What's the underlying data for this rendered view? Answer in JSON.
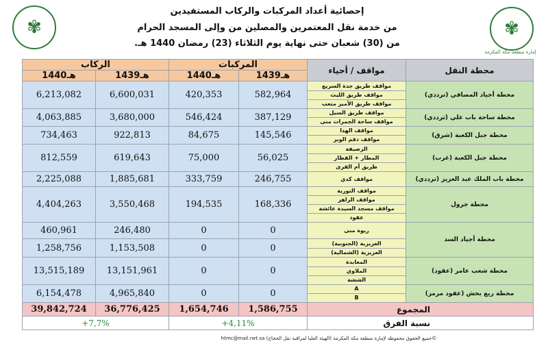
{
  "header": {
    "title_line1": "إحصائية أعداد المركبات والركاب المستفيدين",
    "title_line2": "من خدمة نقل المعتمرين والمصلين من وإلى المسجد الحرام",
    "title_line3": "من (30) شعبان حتى نهاية يوم الثلاثاء (23) رمضان 1440 هـ.",
    "right_logo_caption": "إمارة منطقة مكة المكرمة"
  },
  "table": {
    "group_passengers": "الركاب",
    "group_vehicles": "المركبات",
    "col_areas": "مواقف / أحياء",
    "col_station": "محطة النقل",
    "year_1440": "1440هـ",
    "year_1439": "1439هـ",
    "rows": [
      {
        "station": "محطة أجياد المصافي (ترددي)",
        "areas": [
          "مواقف طريق جدة السريع",
          "مواقف طريق الليث",
          "مواقف طريق الأمير متعب"
        ],
        "veh_1439": "582,964",
        "veh_1440": "420,353",
        "pas_1439": "6,600,031",
        "pas_1440": "6,213,082"
      },
      {
        "station": "محطة ساحة باب علي (ترددي)",
        "areas": [
          "مواقف طريق السيل",
          "مواقف ساحة الجمرات منى"
        ],
        "veh_1439": "387,129",
        "veh_1440": "546,424",
        "pas_1439": "3,680,000",
        "pas_1440": "4,063,885"
      },
      {
        "station": "محطة جبل الكعبة (شرق)",
        "areas": [
          "مواقف الهدا",
          "مواقف دقم الوبر"
        ],
        "veh_1439": "145,546",
        "veh_1440": "84,675",
        "pas_1439": "922,813",
        "pas_1440": "734,463"
      },
      {
        "station": "محطة جبل الكعبة (غرب)",
        "areas": [
          "الرصيفة",
          "المطار + القطار",
          "طريق أم القرى"
        ],
        "veh_1439": "56,025",
        "veh_1440": "75,000",
        "pas_1439": "619,643",
        "pas_1440": "812,559"
      },
      {
        "station": "محطة باب الملك عبد العزيز (ترددي)",
        "areas": [
          "مواقف كدي"
        ],
        "veh_1439": "246,755",
        "veh_1440": "333,759",
        "pas_1439": "1,885,681",
        "pas_1440": "2,225,088"
      },
      {
        "station": "محطة جرول",
        "areas": [
          "مواقف النورية",
          "مواقف الزاهر",
          "مواقف مسجد السيدة عائشة",
          "عقود"
        ],
        "veh_1439": "168,336",
        "veh_1440": "194,535",
        "pas_1439": "3,550,468",
        "pas_1440": "4,404,263"
      },
      {
        "station": "محطة أجياد السد",
        "areas": [
          "ريوة منى"
        ],
        "veh_1439": "0",
        "veh_1440": "0",
        "pas_1439": "246,480",
        "pas_1440": "460,961"
      },
      {
        "station": "",
        "areas": [
          "العزيزية (الجنوبية)",
          "العزيزية (الشمالية)"
        ],
        "veh_1439": "0",
        "veh_1440": "0",
        "pas_1439": "1,153,508",
        "pas_1440": "1,258,756"
      },
      {
        "station": "محطة شعب عامر (عقود)",
        "areas": [
          "المعابدة",
          "الملاوي",
          "الششة"
        ],
        "veh_1439": "0",
        "veh_1440": "0",
        "pas_1439": "13,151,961",
        "pas_1440": "13,515,189"
      },
      {
        "station": "محطة ريع بخش (عقود مرمز)",
        "areas": [
          "A",
          "B"
        ],
        "veh_1439": "0",
        "veh_1440": "0",
        "pas_1439": "4,965,840",
        "pas_1440": "6,154,478"
      }
    ],
    "total_label": "المجموع",
    "total_veh_1439": "1,586,755",
    "total_veh_1440": "1,654,746",
    "total_pas_1439": "36,776,425",
    "total_pas_1440": "39,842,724",
    "diff_label": "نسبة الفرق",
    "diff_vehicles": "+4,11%",
    "diff_passengers": "+7,7%"
  },
  "footer": {
    "text": "©جميع الحقوق محفوظة لإمارة منطقة مكة المكرمة (الهيئة العليا لمراقبة نقل الحجاج) htmc@mail.net.sa"
  },
  "colors": {
    "orange_header": "#f6c89f",
    "grey_header": "#c9ccd1",
    "number_cell": "#cfe0f3",
    "area_cell": "#f2f4bd",
    "station_cell": "#c7e3b4",
    "total_row": "#f5c4c4",
    "diff_text": "#2e8b3a"
  },
  "icons": {
    "left_logo": "saudi-emblem-icon",
    "right_logo": "makkah-emirate-emblem-icon"
  }
}
